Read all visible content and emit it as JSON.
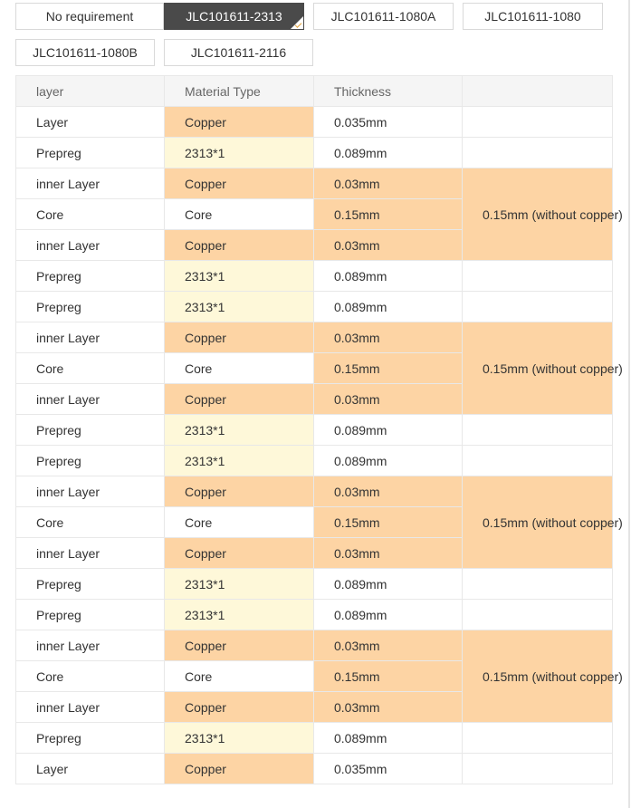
{
  "options": [
    {
      "label": "No requirement",
      "selected": false
    },
    {
      "label": "JLC101611-2313",
      "selected": true
    },
    {
      "label": "JLC101611-1080A",
      "selected": false
    },
    {
      "label": "JLC101611-1080",
      "selected": false
    },
    {
      "label": "JLC101611-1080B",
      "selected": false
    },
    {
      "label": "JLC101611-2116",
      "selected": false
    }
  ],
  "table": {
    "headers": [
      "layer",
      "Material Type",
      "Thickness",
      ""
    ],
    "rows": [
      {
        "layer": "Layer",
        "material": "Copper",
        "thickness": "0.035mm",
        "mat_type": "copper",
        "th_type": "white"
      },
      {
        "layer": "Prepreg",
        "material": "2313*1",
        "thickness": "0.089mm",
        "mat_type": "prepreg",
        "th_type": "white"
      },
      {
        "layer": "inner Layer",
        "material": "Copper",
        "thickness": "0.03mm",
        "mat_type": "copper",
        "th_type": "copper",
        "group": "0.15mm (without copper)"
      },
      {
        "layer": "Core",
        "material": "Core",
        "thickness": "0.15mm",
        "mat_type": "white",
        "th_type": "copper"
      },
      {
        "layer": "inner Layer",
        "material": "Copper",
        "thickness": "0.03mm",
        "mat_type": "copper",
        "th_type": "copper"
      },
      {
        "layer": "Prepreg",
        "material": "2313*1",
        "thickness": "0.089mm",
        "mat_type": "prepreg",
        "th_type": "white"
      },
      {
        "layer": "Prepreg",
        "material": "2313*1",
        "thickness": "0.089mm",
        "mat_type": "prepreg",
        "th_type": "white"
      },
      {
        "layer": "inner Layer",
        "material": "Copper",
        "thickness": "0.03mm",
        "mat_type": "copper",
        "th_type": "copper",
        "group": "0.15mm (without copper)"
      },
      {
        "layer": "Core",
        "material": "Core",
        "thickness": "0.15mm",
        "mat_type": "white",
        "th_type": "copper"
      },
      {
        "layer": "inner Layer",
        "material": "Copper",
        "thickness": "0.03mm",
        "mat_type": "copper",
        "th_type": "copper"
      },
      {
        "layer": "Prepreg",
        "material": "2313*1",
        "thickness": "0.089mm",
        "mat_type": "prepreg",
        "th_type": "white"
      },
      {
        "layer": "Prepreg",
        "material": "2313*1",
        "thickness": "0.089mm",
        "mat_type": "prepreg",
        "th_type": "white"
      },
      {
        "layer": "inner Layer",
        "material": "Copper",
        "thickness": "0.03mm",
        "mat_type": "copper",
        "th_type": "copper",
        "group": "0.15mm (without copper)"
      },
      {
        "layer": "Core",
        "material": "Core",
        "thickness": "0.15mm",
        "mat_type": "white",
        "th_type": "copper"
      },
      {
        "layer": "inner Layer",
        "material": "Copper",
        "thickness": "0.03mm",
        "mat_type": "copper",
        "th_type": "copper"
      },
      {
        "layer": "Prepreg",
        "material": "2313*1",
        "thickness": "0.089mm",
        "mat_type": "prepreg",
        "th_type": "white"
      },
      {
        "layer": "Prepreg",
        "material": "2313*1",
        "thickness": "0.089mm",
        "mat_type": "prepreg",
        "th_type": "white"
      },
      {
        "layer": "inner Layer",
        "material": "Copper",
        "thickness": "0.03mm",
        "mat_type": "copper",
        "th_type": "copper",
        "group": "0.15mm (without copper)"
      },
      {
        "layer": "Core",
        "material": "Core",
        "thickness": "0.15mm",
        "mat_type": "white",
        "th_type": "copper"
      },
      {
        "layer": "inner Layer",
        "material": "Copper",
        "thickness": "0.03mm",
        "mat_type": "copper",
        "th_type": "copper"
      },
      {
        "layer": "Prepreg",
        "material": "2313*1",
        "thickness": "0.089mm",
        "mat_type": "prepreg",
        "th_type": "white"
      },
      {
        "layer": "Layer",
        "material": "Copper",
        "thickness": "0.035mm",
        "mat_type": "copper",
        "th_type": "white"
      }
    ]
  },
  "colors": {
    "copper_fill": "#fdd4a4",
    "prepreg_fill": "#fef8d9",
    "selected_bg": "#4a4a4a",
    "check_accent": "#e2a23b"
  }
}
